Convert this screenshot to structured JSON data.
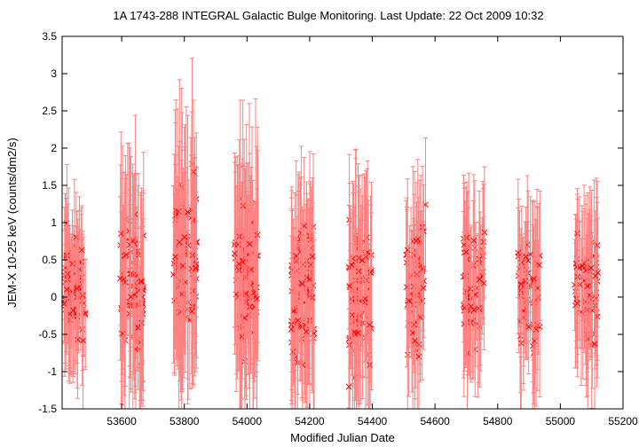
{
  "chart_data": {
    "type": "scatter",
    "title": "1A 1743-288   INTEGRAL Galactic Bulge Monitoring.  Last Update: 22 Oct 2009 10:32",
    "xlabel": "Modified Julian Date",
    "ylabel": "JEM-X 10-25 keV (counts/dm2/s)",
    "xlim": [
      53410,
      55200
    ],
    "ylim": [
      -1.5,
      3.5
    ],
    "x_ticks": [
      53600,
      53800,
      54000,
      54200,
      54400,
      54600,
      54800,
      55000,
      55200
    ],
    "y_ticks": [
      -1.5,
      -1,
      -0.5,
      0,
      0.5,
      1,
      1.5,
      2,
      2.5,
      3,
      3.5
    ],
    "x_tick_labels": [
      "53600",
      "53800",
      "54000",
      "54200",
      "54400",
      "54600",
      "54800",
      "55000",
      "55200"
    ],
    "y_tick_labels": [
      "-1.5",
      "-1",
      "-0.5",
      "0",
      "0.5",
      "1",
      "1.5",
      "2",
      "2.5",
      "3",
      "3.5"
    ],
    "grid": false,
    "marker": "x",
    "series_color": "#ff0000",
    "errorbar_color": "#ff8080",
    "visibility_windows": [
      {
        "x_start": 53415,
        "x_end": 53485,
        "y_center": 0.1,
        "y_spread": 0.35,
        "err_range": [
          0.5,
          1.0
        ],
        "count": 70
      },
      {
        "x_start": 53595,
        "x_end": 53670,
        "y_center": 0.2,
        "y_spread": 0.45,
        "err_range": [
          0.8,
          1.4
        ],
        "count": 75
      },
      {
        "x_start": 53765,
        "x_end": 53840,
        "y_center": 0.45,
        "y_spread": 0.5,
        "err_range": [
          0.8,
          1.5
        ],
        "count": 80
      },
      {
        "x_start": 53960,
        "x_end": 54035,
        "y_center": 0.25,
        "y_spread": 0.5,
        "err_range": [
          0.8,
          1.5
        ],
        "count": 80
      },
      {
        "x_start": 54140,
        "x_end": 54215,
        "y_center": 0.05,
        "y_spread": 0.45,
        "err_range": [
          0.7,
          1.3
        ],
        "count": 78
      },
      {
        "x_start": 54325,
        "x_end": 54400,
        "y_center": 0.0,
        "y_spread": 0.45,
        "err_range": [
          0.7,
          1.3
        ],
        "count": 75
      },
      {
        "x_start": 54505,
        "x_end": 54570,
        "y_center": 0.15,
        "y_spread": 0.45,
        "err_range": [
          0.6,
          1.1
        ],
        "count": 55
      },
      {
        "x_start": 54690,
        "x_end": 54760,
        "y_center": 0.2,
        "y_spread": 0.35,
        "err_range": [
          0.6,
          1.0
        ],
        "count": 60
      },
      {
        "x_start": 54865,
        "x_end": 54935,
        "y_center": 0.05,
        "y_spread": 0.35,
        "err_range": [
          0.6,
          1.1
        ],
        "count": 55
      },
      {
        "x_start": 55045,
        "x_end": 55120,
        "y_center": 0.1,
        "y_spread": 0.35,
        "err_range": [
          0.6,
          1.1
        ],
        "count": 65
      }
    ]
  }
}
